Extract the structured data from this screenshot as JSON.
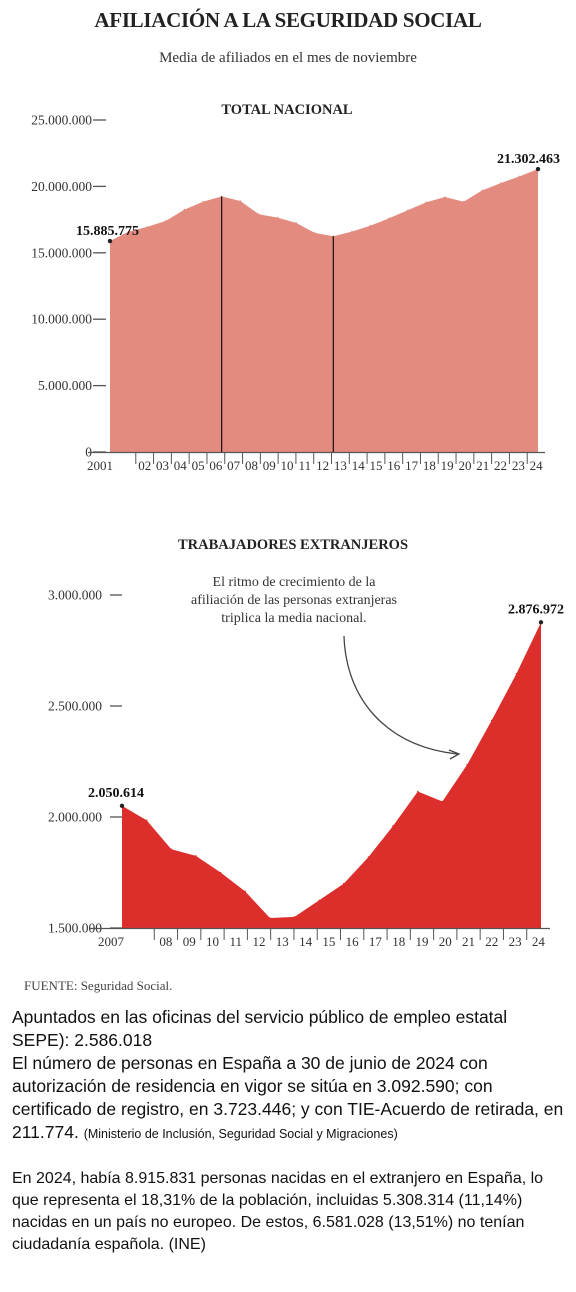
{
  "title": "AFILIACIÓN A LA SEGURIDAD SOCIAL",
  "subtitle": "Media de afiliados en el mes de noviembre",
  "source": "FUENTE: Seguridad Social.",
  "notes": {
    "p1_line1": "Apuntados en las oficinas del servicio público de empleo estatal SEPE): 2.586.018",
    "p1_line2": "El número de personas en España a 30 de junio de 2024 con autorización de residencia en vigor se sitúa en 3.092.590; con certificado de registro, en 3.723.446; y con TIE-Acuerdo de retirada, en 211.774.",
    "p1_citation": "(Ministerio de Inclusión, Seguridad Social y Migraciones)",
    "p2": "En 2024, había 8.915.831 personas nacidas en el extranjero en España, lo que representa el 18,31% de la población, incluidas 5.308.314 (11,14%) nacidas en un país no europeo. De estos, 6.581.028 (13,51%) no tenían ciudadanía española. (INE)"
  },
  "colors": {
    "national_fill": "#e48b80",
    "foreign_fill": "#dc2e2b",
    "axis": "#555555"
  },
  "chart_data": [
    {
      "type": "area",
      "title": "TOTAL NACIONAL",
      "x_tick_labels": [
        "2001",
        "02",
        "03",
        "04",
        "05",
        "06",
        "07",
        "08",
        "09",
        "10",
        "11",
        "12",
        "13",
        "14",
        "15",
        "16",
        "17",
        "18",
        "19",
        "20",
        "21",
        "22",
        "23",
        "24"
      ],
      "values": [
        15885775,
        16600000,
        16950000,
        17400000,
        18250000,
        18850000,
        19250000,
        18900000,
        17900000,
        17650000,
        17250000,
        16500000,
        16250000,
        16600000,
        17050000,
        17600000,
        18200000,
        18800000,
        19200000,
        18850000,
        19700000,
        20250000,
        20750000,
        21302463
      ],
      "ylim": [
        0,
        25000000
      ],
      "y_tick_labels": [
        "25.000.000",
        "20.000.000",
        "15.000.000",
        "10.000.000",
        "5.000.000",
        "0"
      ],
      "y_tick_values": [
        25000000,
        20000000,
        15000000,
        10000000,
        5000000,
        0
      ],
      "vertical_markers": [
        "07",
        "13"
      ],
      "labels": {
        "first": "15.885.775",
        "last": "21.302.463"
      },
      "grid": false
    },
    {
      "type": "area",
      "title": "TRABAJADORES EXTRANJEROS",
      "x_tick_labels": [
        "2007",
        "08",
        "09",
        "10",
        "11",
        "12",
        "13",
        "14",
        "15",
        "16",
        "17",
        "18",
        "19",
        "20",
        "21",
        "22",
        "23",
        "24"
      ],
      "values": [
        2050614,
        1985000,
        1855000,
        1825000,
        1750000,
        1665000,
        1545000,
        1550000,
        1625000,
        1700000,
        1820000,
        1960000,
        2115000,
        2070000,
        2235000,
        2435000,
        2645000,
        2876972
      ],
      "ylim": [
        1500000,
        3000000
      ],
      "y_tick_labels": [
        "3.000.000",
        "2.500.000",
        "2.000.000",
        "1.500.000"
      ],
      "y_tick_values": [
        3000000,
        2500000,
        2000000,
        1500000
      ],
      "labels": {
        "first": "2.050.614",
        "last": "2.876.972"
      },
      "annotation": [
        "El ritmo de crecimiento de la",
        "afiliación de las personas extranjeras",
        "triplica la media nacional."
      ],
      "grid": false
    }
  ]
}
